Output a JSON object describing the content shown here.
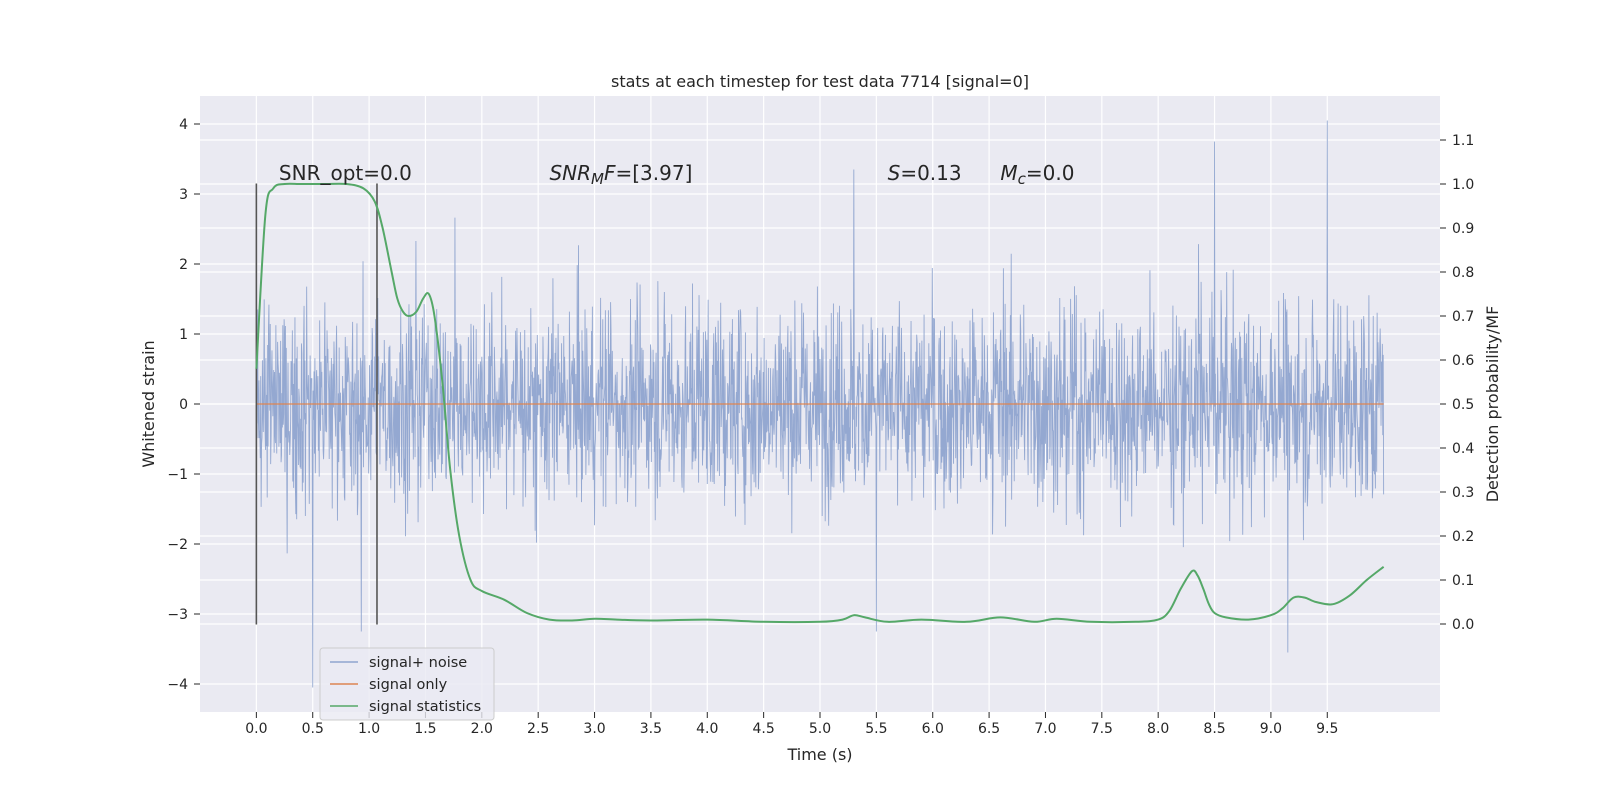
{
  "chart_data": {
    "type": "line",
    "title": "stats at each timestep for test data 7714 [signal=0]",
    "xlabel": "Time (s)",
    "ylabel": "Whitened strain",
    "y2label": "Detection probability/MF",
    "xlim": [
      -0.5,
      10.5
    ],
    "ylim": [
      -4.4,
      4.4
    ],
    "y2lim": [
      -0.2,
      1.2
    ],
    "xticks": [
      "0.0",
      "0.5",
      "1.0",
      "1.5",
      "2.0",
      "2.5",
      "3.0",
      "3.5",
      "4.0",
      "4.5",
      "5.0",
      "5.5",
      "6.0",
      "6.5",
      "7.0",
      "7.5",
      "8.0",
      "8.5",
      "9.0",
      "9.5"
    ],
    "yticks": [
      "4",
      "3",
      "2",
      "1",
      "0",
      "−1",
      "−2",
      "−3",
      "−4"
    ],
    "y2ticks": [
      "1.1",
      "1.0",
      "0.9",
      "0.8",
      "0.7",
      "0.6",
      "0.5",
      "0.4",
      "0.3",
      "0.2",
      "0.1",
      "0.0"
    ],
    "grid": true,
    "legend_position": "lower-left",
    "annotations": [
      {
        "id": "snr-opt",
        "parts": [
          {
            "text": "SNR_opt=0.0",
            "italic": false
          }
        ],
        "x": 0.2
      },
      {
        "id": "snr-mf",
        "parts": [
          {
            "text": "SNR",
            "italic": true
          },
          {
            "text": "M",
            "italic": true,
            "sub": true
          },
          {
            "text": "F",
            "italic": true
          },
          {
            "text": "=[3.97]",
            "italic": false
          }
        ],
        "x": 2.6
      },
      {
        "id": "s-value",
        "parts": [
          {
            "text": "S",
            "italic": true
          },
          {
            "text": "=0.13",
            "italic": false
          }
        ],
        "x": 5.6
      },
      {
        "id": "mc-value",
        "parts": [
          {
            "text": "M",
            "italic": true
          },
          {
            "text": "c",
            "italic": true,
            "sub": true
          },
          {
            "text": "=0.0",
            "italic": false
          }
        ],
        "x": 6.6
      }
    ],
    "annotation_y": 3.2,
    "vlines": [
      {
        "x": 0.0,
        "ymin": -3.15,
        "ymax": 3.15
      },
      {
        "x": 1.07,
        "ymin": -3.15,
        "ymax": 3.15
      }
    ],
    "series": [
      {
        "name": "signal+ noise",
        "axis": "left",
        "color": "#8fa4cf",
        "x_range": [
          0.0,
          10.0
        ],
        "envelope": "dense noise, core band about ±1.25, frequent spikes to ±2.5, extremes 4.05 (t≈9.5) and −4.05 (t≈0.5)",
        "extremes": [
          {
            "x": 0.5,
            "y": -4.05
          },
          {
            "x": 9.5,
            "y": 4.05
          },
          {
            "x": 8.5,
            "y": 3.75
          },
          {
            "x": 9.15,
            "y": -3.55
          },
          {
            "x": 5.3,
            "y": 3.35
          },
          {
            "x": 5.5,
            "y": -3.25
          },
          {
            "x": 0.93,
            "y": -3.25
          }
        ]
      },
      {
        "name": "signal only",
        "axis": "left",
        "color": "#dd8452",
        "x": [
          0.0,
          10.0
        ],
        "y": [
          0.0,
          0.0
        ]
      },
      {
        "name": "signal statistics",
        "axis": "right",
        "color": "#55a868",
        "x": [
          0.0,
          0.08,
          0.15,
          0.25,
          0.4,
          0.6,
          0.8,
          0.95,
          1.05,
          1.12,
          1.2,
          1.25,
          1.3,
          1.35,
          1.42,
          1.48,
          1.53,
          1.58,
          1.65,
          1.72,
          1.8,
          1.9,
          2.0,
          2.2,
          2.4,
          2.6,
          2.8,
          3.0,
          3.2,
          3.5,
          4.0,
          4.5,
          5.0,
          5.2,
          5.3,
          5.4,
          5.6,
          5.9,
          6.3,
          6.6,
          6.9,
          7.1,
          7.4,
          7.8,
          8.0,
          8.1,
          8.2,
          8.3,
          8.35,
          8.4,
          8.45,
          8.5,
          8.6,
          8.8,
          9.0,
          9.1,
          9.2,
          9.3,
          9.4,
          9.55,
          9.7,
          9.85,
          10.0
        ],
        "y": [
          0.58,
          0.93,
          0.99,
          1.0,
          1.0,
          1.0,
          1.0,
          0.99,
          0.96,
          0.9,
          0.8,
          0.74,
          0.71,
          0.7,
          0.71,
          0.74,
          0.75,
          0.7,
          0.55,
          0.35,
          0.2,
          0.1,
          0.075,
          0.055,
          0.025,
          0.01,
          0.008,
          0.012,
          0.01,
          0.008,
          0.01,
          0.005,
          0.005,
          0.01,
          0.02,
          0.015,
          0.005,
          0.01,
          0.005,
          0.015,
          0.005,
          0.012,
          0.005,
          0.005,
          0.01,
          0.03,
          0.08,
          0.12,
          0.11,
          0.08,
          0.045,
          0.025,
          0.015,
          0.01,
          0.02,
          0.035,
          0.06,
          0.06,
          0.05,
          0.045,
          0.065,
          0.1,
          0.13
        ]
      }
    ]
  }
}
